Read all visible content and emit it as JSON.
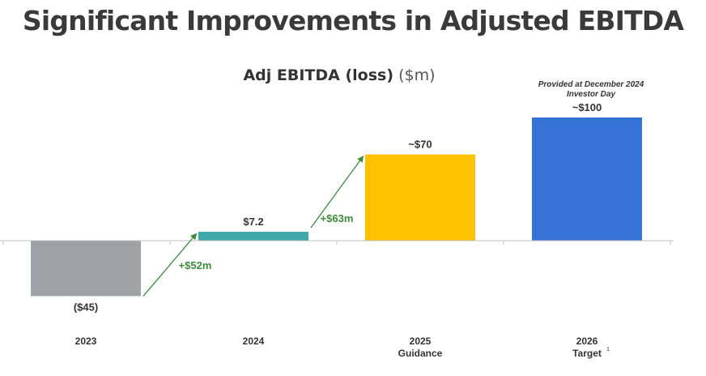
{
  "slide": {
    "title": "Significant Improvements in Adjusted EBITDA",
    "annotation": "Provided at December 2024 Investor Day",
    "footnote_marker": "1"
  },
  "chart_data": {
    "type": "bar",
    "title": "Adj EBITDA (loss)",
    "title_unit": "($m)",
    "categories": [
      {
        "line1": "2023",
        "line2": ""
      },
      {
        "line1": "2024",
        "line2": ""
      },
      {
        "line1": "2025",
        "line2": "Guidance"
      },
      {
        "line1": "2026",
        "line2": "Target"
      }
    ],
    "values": [
      -45,
      7.2,
      70,
      100
    ],
    "value_labels": [
      "($45)",
      "$7.2",
      "~$70",
      "~$100"
    ],
    "colors": [
      "#9ea3a8",
      "#3fa7a7",
      "#ffc000",
      "#3573d6"
    ],
    "changes": [
      {
        "from": 0,
        "to": 1,
        "label": "+$52m"
      },
      {
        "from": 1,
        "to": 2,
        "label": "+$63m"
      }
    ],
    "change_color": "#3d8b3d",
    "axis_color": "#bfbfbf",
    "ylim": [
      -50,
      110
    ],
    "grid": false,
    "legend": "none"
  }
}
